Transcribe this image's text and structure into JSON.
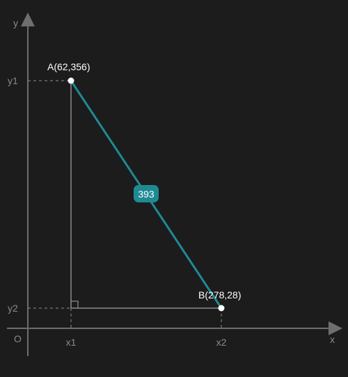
{
  "colors": {
    "background": "#1c1c1c",
    "axis": "#6e6e6e",
    "leg": "#8c8c8c",
    "guide": "#7a7a7a",
    "segment": "#1f8a94",
    "point": "#ffffff",
    "label": "#ffffff",
    "muted_text": "#8a8a8a"
  },
  "axes": {
    "x_label": "x",
    "y_label": "y",
    "origin_label": "O"
  },
  "ticks": {
    "x1": "x1",
    "x2": "x2",
    "y1": "y1",
    "y2": "y2"
  },
  "points": {
    "a_label": "A(62,356)",
    "b_label": "B(278,28)"
  },
  "distance": {
    "value": "393"
  },
  "icons": {
    "right_angle": "right-angle-icon"
  }
}
